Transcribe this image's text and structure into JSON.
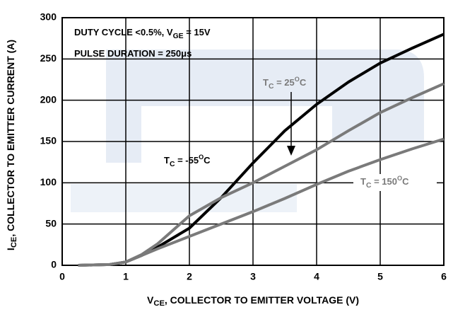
{
  "chart_data": {
    "type": "line",
    "xlabel": [
      "V",
      "CE",
      ", COLLECTOR TO EMITTER VOLTAGE (V)"
    ],
    "ylabel": [
      "I",
      "CE",
      ", COLLECTOR TO EMITTER CURRENT (A)"
    ],
    "annotations": [
      [
        "DUTY CYCLE <0.5%, V",
        "GE",
        " = 15V"
      ],
      [
        "PULSE DURATION = 250",
        "μ",
        "s"
      ]
    ],
    "x": [
      0.25,
      0.75,
      1,
      1.25,
      1.5,
      2,
      2.5,
      3,
      3.5,
      4,
      4.5,
      5,
      5.5,
      6
    ],
    "series": [
      {
        "name": [
          "T",
          "C",
          " = -55",
          "O",
          "C"
        ],
        "color": "#000000",
        "values": [
          0,
          1,
          4,
          12,
          22,
          45,
          82,
          124,
          163,
          195,
          222,
          245,
          263,
          280
        ]
      },
      {
        "name": [
          "T",
          "C",
          " = 25",
          "O",
          "C"
        ],
        "color": "#7a7a7a",
        "values": [
          0,
          1,
          4,
          13,
          26,
          60,
          82,
          100,
          120,
          140,
          163,
          185,
          203,
          220
        ]
      },
      {
        "name": [
          "T",
          "C",
          " = 150",
          "O",
          "C"
        ],
        "color": "#7a7a7a",
        "values": [
          0,
          1,
          4,
          12,
          20,
          35,
          50,
          65,
          81,
          98,
          114,
          128,
          141,
          153
        ]
      }
    ],
    "xlim": [
      0,
      6
    ],
    "xticks": [
      0,
      1,
      2,
      3,
      4,
      5,
      6
    ],
    "ylim": [
      0,
      300
    ],
    "yticks": [
      0,
      50,
      100,
      150,
      200,
      250,
      300
    ],
    "grid": true
  }
}
